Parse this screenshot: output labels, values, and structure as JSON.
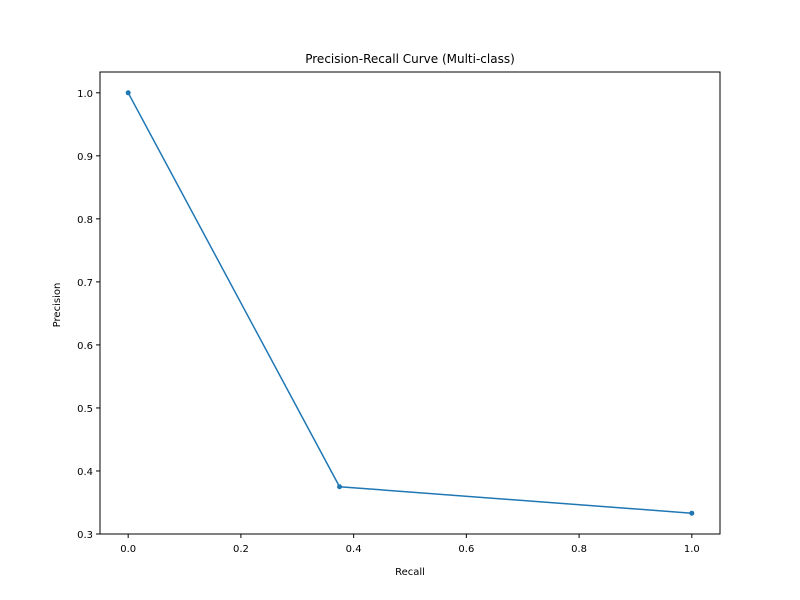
{
  "chart_data": {
    "type": "line",
    "title": "Precision-Recall Curve (Multi-class)",
    "xlabel": "Recall",
    "ylabel": "Precision",
    "xlim": [
      -0.05,
      1.05
    ],
    "ylim": [
      0.3,
      1.033
    ],
    "xticks": [
      0.0,
      0.2,
      0.4,
      0.6,
      0.8,
      1.0
    ],
    "xtick_labels": [
      "0.0",
      "0.2",
      "0.4",
      "0.6",
      "0.8",
      "1.0"
    ],
    "yticks": [
      0.3,
      0.4,
      0.5,
      0.6,
      0.7,
      0.8,
      0.9,
      1.0
    ],
    "ytick_labels": [
      "0.3",
      "0.4",
      "0.5",
      "0.6",
      "0.7",
      "0.8",
      "0.9",
      "1.0"
    ],
    "grid": false,
    "series": [
      {
        "x": [
          0.0,
          0.375,
          1.0
        ],
        "y": [
          1.0,
          0.375,
          0.333
        ],
        "color": "#1f77b4",
        "marker": "dot"
      }
    ]
  }
}
